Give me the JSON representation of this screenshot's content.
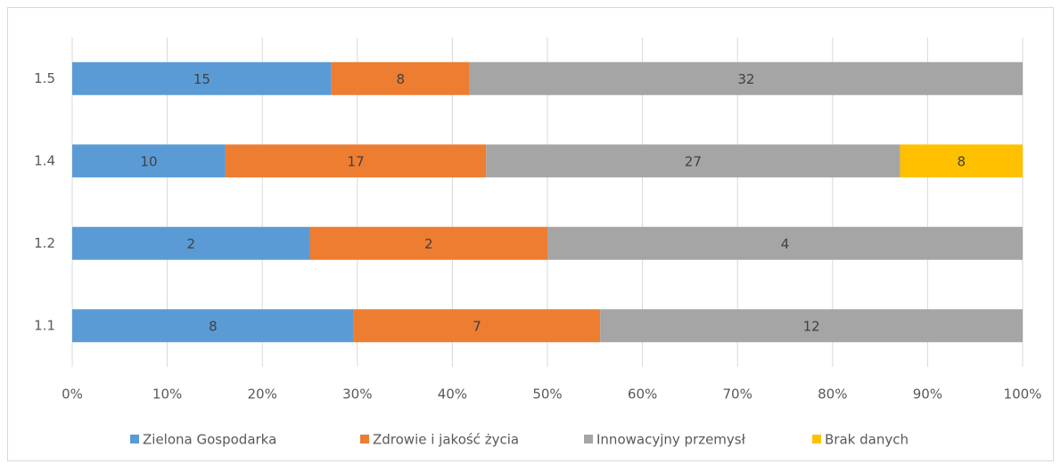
{
  "chart_data": {
    "type": "stacked-bar-100-horizontal",
    "categories": [
      "1.1",
      "1.2",
      "1.4",
      "1.5"
    ],
    "series": [
      {
        "name": "Zielona Gospodarka",
        "color": "#5b9bd5",
        "values": [
          8,
          2,
          10,
          15
        ]
      },
      {
        "name": "Zdrowie i jakość życia",
        "color": "#ed7d31",
        "values": [
          7,
          2,
          17,
          8
        ]
      },
      {
        "name": "Innowacyjny przemysł",
        "color": "#a5a5a5",
        "values": [
          12,
          4,
          27,
          32
        ]
      },
      {
        "name": "Brak danych",
        "color": "#ffc000",
        "values": [
          null,
          null,
          8,
          null
        ]
      }
    ],
    "xlim": [
      0,
      100
    ],
    "xticks": [
      {
        "value": 0,
        "label": "0%"
      },
      {
        "value": 10,
        "label": "10%"
      },
      {
        "value": 20,
        "label": "20%"
      },
      {
        "value": 30,
        "label": "30%"
      },
      {
        "value": 40,
        "label": "40%"
      },
      {
        "value": 50,
        "label": "50%"
      },
      {
        "value": 60,
        "label": "60%"
      },
      {
        "value": 70,
        "label": "70%"
      },
      {
        "value": 80,
        "label": "80%"
      },
      {
        "value": 90,
        "label": "90%"
      },
      {
        "value": 100,
        "label": "100%"
      }
    ],
    "grid": true,
    "legend": "bottom"
  }
}
